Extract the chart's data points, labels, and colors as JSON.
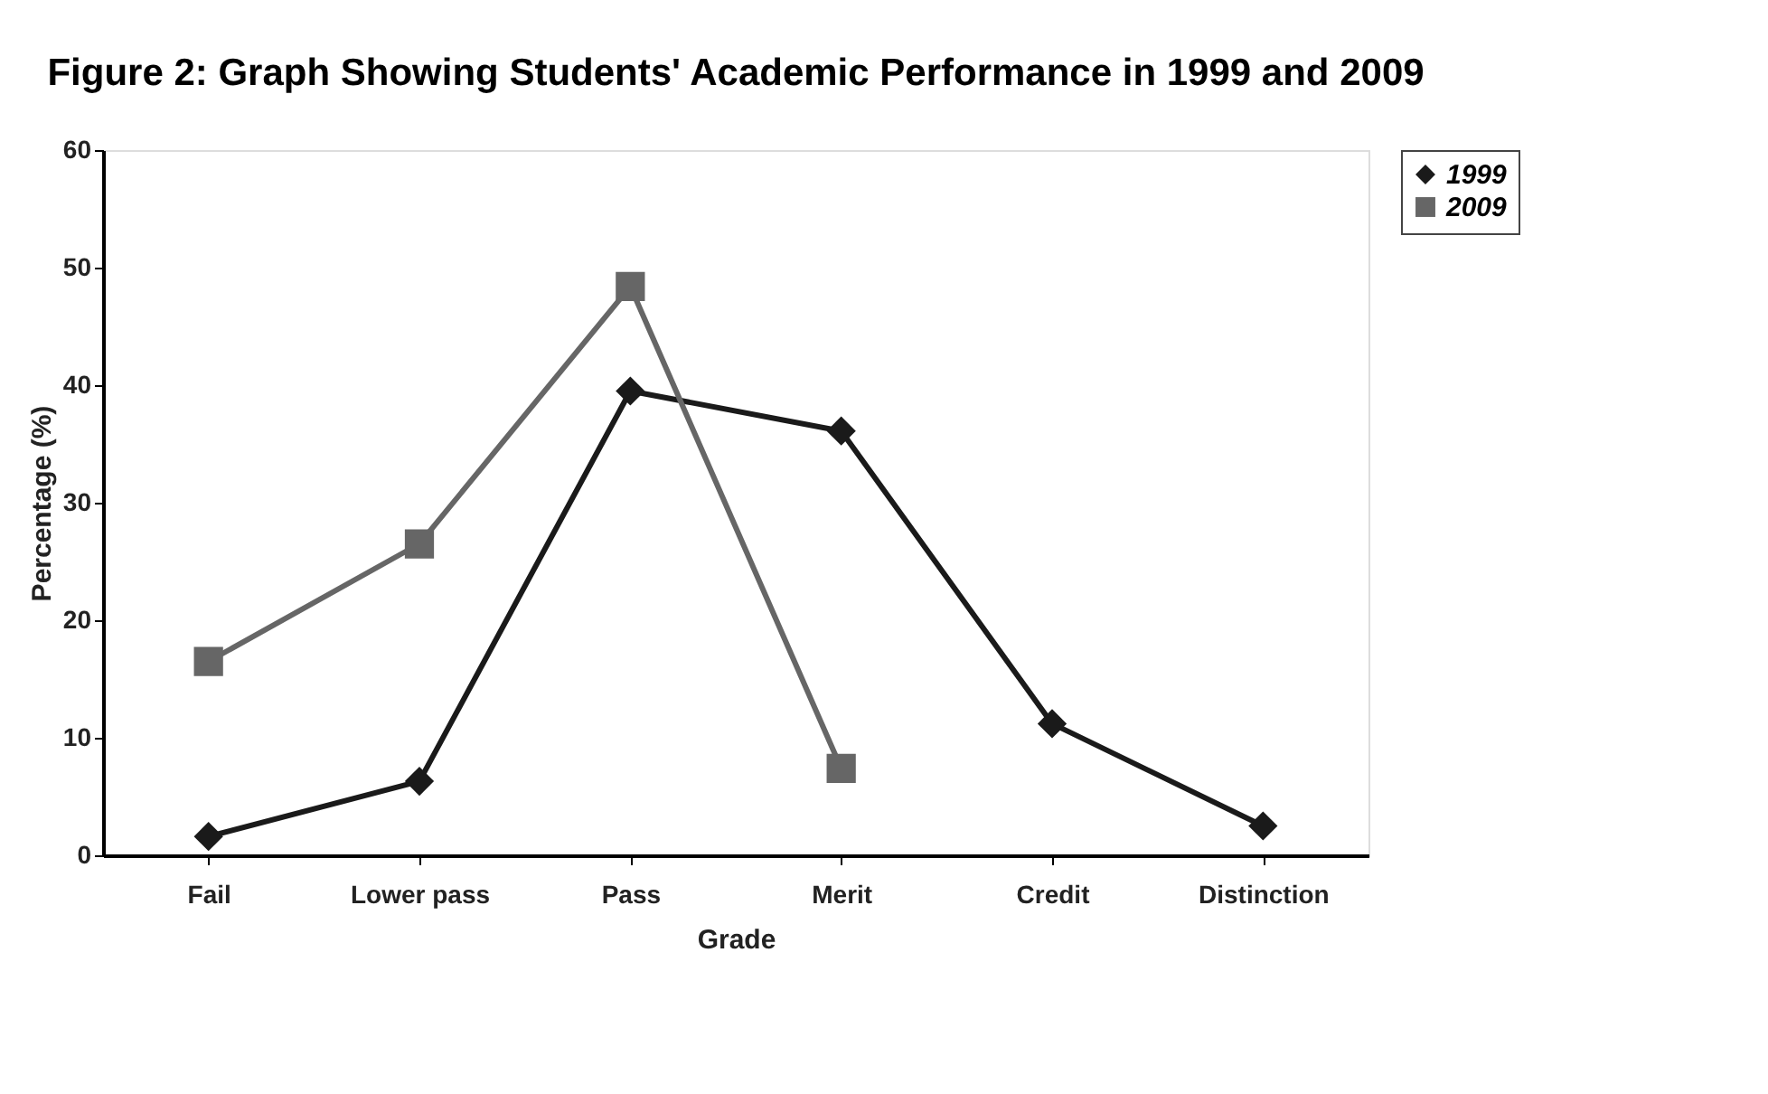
{
  "chart_data": {
    "type": "line",
    "title": "Figure 2: Graph Showing Students' Academic Performance in 1999 and 2009",
    "xlabel": "Grade",
    "ylabel": "Percentage (%)",
    "categories": [
      "Fail",
      "Lower pass",
      "Pass",
      "Merit",
      "Credit",
      "Distinction"
    ],
    "series": [
      {
        "name": "1999",
        "color": "#1a1a1a",
        "marker": "diamond",
        "values": [
          1.6,
          6.3,
          39.5,
          36.1,
          11.2,
          2.5
        ]
      },
      {
        "name": "2009",
        "color": "#666666",
        "marker": "square",
        "values": [
          16.5,
          26.5,
          48.4,
          7.4,
          null,
          null
        ]
      }
    ],
    "ylim": [
      0,
      60
    ],
    "yticks": [
      0,
      10,
      20,
      30,
      40,
      50,
      60
    ],
    "grid": false,
    "legend": "right",
    "line_style": "solid"
  }
}
